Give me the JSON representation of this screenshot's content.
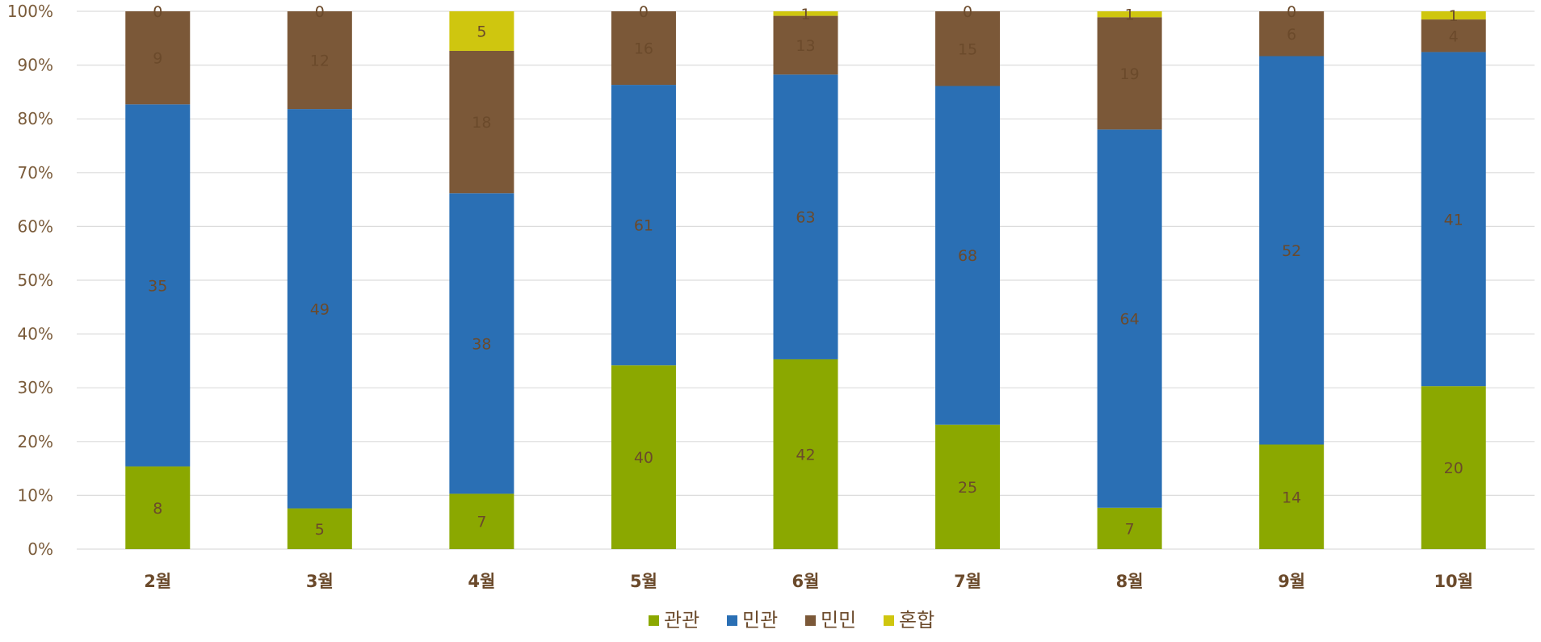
{
  "chart_data": {
    "type": "bar",
    "stacked": "percent",
    "categories": [
      "2월",
      "3월",
      "4월",
      "5월",
      "6월",
      "7월",
      "8월",
      "9월",
      "10월"
    ],
    "series": [
      {
        "name": "관관",
        "color": "#8ba800",
        "values": [
          8,
          5,
          7,
          40,
          42,
          25,
          7,
          14,
          20
        ]
      },
      {
        "name": "민관",
        "color": "#2a6fb4",
        "values": [
          35,
          49,
          38,
          61,
          63,
          68,
          64,
          52,
          41
        ]
      },
      {
        "name": "민민",
        "color": "#7b5838",
        "values": [
          9,
          12,
          18,
          16,
          13,
          15,
          19,
          6,
          4
        ]
      },
      {
        "name": "혼합",
        "color": "#cfc60f",
        "values": [
          0,
          0,
          5,
          0,
          1,
          0,
          1,
          0,
          1
        ]
      }
    ],
    "yticks": [
      "0%",
      "10%",
      "20%",
      "30%",
      "40%",
      "50%",
      "60%",
      "70%",
      "80%",
      "90%",
      "100%"
    ],
    "ylim": [
      0,
      100
    ],
    "grid": true,
    "legend": "bottom-center",
    "label_color": "#6b4a2b"
  }
}
